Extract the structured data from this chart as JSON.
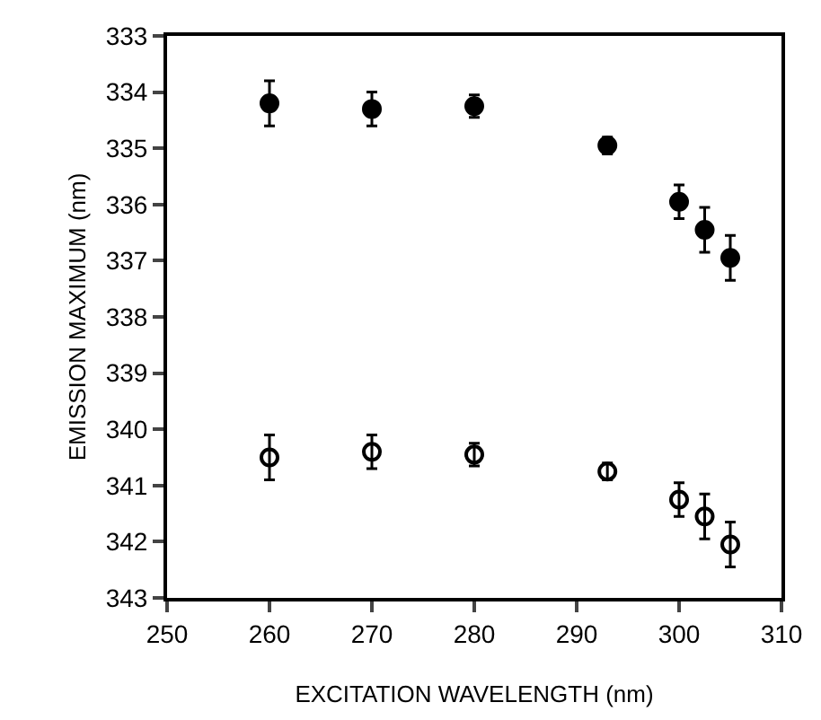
{
  "chart_data": {
    "type": "scatter",
    "xlabel": "EXCITATION WAVELENGTH (nm)",
    "ylabel": "EMISSION MAXIMUM (nm)",
    "xlim": [
      250,
      310
    ],
    "xticks": [
      250,
      260,
      270,
      280,
      290,
      300,
      310
    ],
    "ylim": [
      343,
      333
    ],
    "yticks": [
      333,
      334,
      335,
      336,
      337,
      338,
      339,
      340,
      341,
      342,
      343
    ],
    "grid": false,
    "series": [
      {
        "color": "#000000",
        "marker": "circle",
        "x": [
          260,
          270,
          280,
          293,
          300,
          302.5,
          305
        ],
        "values": [
          334.2,
          334.3,
          334.25,
          334.95,
          335.95,
          336.45,
          336.95
        ],
        "errors": [
          0.4,
          0.3,
          0.2,
          0.15,
          0.3,
          0.4,
          0.4
        ]
      },
      {
        "color": "#000000",
        "marker": "circle-open",
        "x": [
          260,
          270,
          280,
          293,
          300,
          302.5,
          305
        ],
        "values": [
          340.5,
          340.4,
          340.45,
          340.75,
          341.25,
          341.55,
          342.05
        ],
        "errors": [
          0.4,
          0.3,
          0.2,
          0.15,
          0.3,
          0.4,
          0.4
        ]
      }
    ]
  }
}
